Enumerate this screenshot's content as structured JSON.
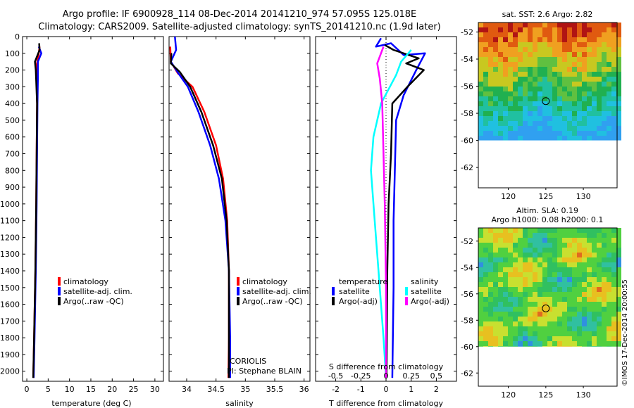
{
  "titles": {
    "line1": "Argo profile: IF 6900928_114 08-Dec-2014 20141210_974 57.095S 125.018E",
    "line2": "Climatology: CARS2009. Satellite-adjusted climatology: synTS_20141210.nc (1.9d later)"
  },
  "colors": {
    "climatology": "#ff0000",
    "satellite": "#0000ff",
    "argo": "#000000",
    "sal_satellite": "#00ffff",
    "sal_argo": "#ff00ff"
  },
  "chart_data": [
    {
      "type": "line",
      "xlabel": "temperature (deg C)",
      "xlim": [
        -1,
        32
      ],
      "xticks": [
        0,
        5,
        10,
        15,
        20,
        25,
        30
      ],
      "ylim": [
        2060,
        0
      ],
      "yticks": [
        0,
        100,
        200,
        300,
        400,
        500,
        600,
        700,
        800,
        900,
        1000,
        1100,
        1200,
        1300,
        1400,
        1500,
        1600,
        1700,
        1800,
        1900,
        2000
      ],
      "legend": [
        "climatology",
        "satellite-adj. clim.",
        "Argo(..raw -QC)"
      ],
      "series": [
        {
          "key": "climatology",
          "points": [
            [
              3.0,
              60
            ],
            [
              2.7,
              120
            ],
            [
              2.3,
              170
            ],
            [
              2.3,
              250
            ],
            [
              2.4,
              400
            ],
            [
              2.3,
              700
            ],
            [
              2.2,
              1000
            ],
            [
              2.0,
              1400
            ],
            [
              1.7,
              1800
            ],
            [
              1.5,
              2040
            ]
          ]
        },
        {
          "key": "satellite",
          "points": [
            [
              2.8,
              60
            ],
            [
              3.4,
              100
            ],
            [
              2.6,
              150
            ],
            [
              2.6,
              250
            ],
            [
              2.5,
              400
            ],
            [
              2.4,
              700
            ],
            [
              2.3,
              1000
            ],
            [
              2.1,
              1400
            ],
            [
              1.8,
              1800
            ],
            [
              1.6,
              2040
            ]
          ]
        },
        {
          "key": "argo",
          "points": [
            [
              2.9,
              40
            ],
            [
              3.0,
              80
            ],
            [
              1.9,
              150
            ],
            [
              2.1,
              200
            ],
            [
              2.4,
              400
            ],
            [
              2.3,
              700
            ],
            [
              2.2,
              1000
            ],
            [
              2.0,
              1400
            ],
            [
              1.7,
              1800
            ],
            [
              1.5,
              2040
            ]
          ]
        }
      ]
    },
    {
      "type": "line",
      "xlabel": "salinity",
      "xlim": [
        33.7,
        36.1
      ],
      "xticks": [
        34,
        34.5,
        35,
        35.5,
        36
      ],
      "ylim": [
        2060,
        0
      ],
      "legend": [
        "climatology",
        "satellite-adj. clim.",
        "Argo(..raw -QC)"
      ],
      "annotation": [
        "CORIOLIS",
        "PI: Stephane BLAIN"
      ],
      "series": [
        {
          "key": "climatology",
          "points": [
            [
              33.72,
              60
            ],
            [
              33.73,
              150
            ],
            [
              33.85,
              220
            ],
            [
              34.1,
              300
            ],
            [
              34.3,
              450
            ],
            [
              34.5,
              650
            ],
            [
              34.62,
              850
            ],
            [
              34.69,
              1100
            ],
            [
              34.72,
              1400
            ],
            [
              34.72,
              1800
            ],
            [
              34.71,
              2040
            ]
          ]
        },
        {
          "key": "satellite",
          "points": [
            [
              33.8,
              0
            ],
            [
              33.82,
              80
            ],
            [
              33.73,
              150
            ],
            [
              33.86,
              220
            ],
            [
              34.02,
              300
            ],
            [
              34.2,
              450
            ],
            [
              34.4,
              650
            ],
            [
              34.55,
              850
            ],
            [
              34.66,
              1100
            ],
            [
              34.72,
              1400
            ],
            [
              34.74,
              1800
            ],
            [
              34.74,
              2040
            ]
          ]
        },
        {
          "key": "argo",
          "points": [
            [
              33.74,
              100
            ],
            [
              33.73,
              160
            ],
            [
              33.88,
              210
            ],
            [
              34.06,
              300
            ],
            [
              34.25,
              450
            ],
            [
              34.45,
              650
            ],
            [
              34.6,
              850
            ],
            [
              34.68,
              1100
            ],
            [
              34.72,
              1400
            ],
            [
              34.72,
              1800
            ],
            [
              34.72,
              2040
            ]
          ]
        }
      ]
    },
    {
      "type": "line",
      "xlabel": "T difference from climatology",
      "xlabel2": "S difference from climatology",
      "xlim": [
        -2.8,
        2.8
      ],
      "xticks": [
        -2,
        -1,
        0,
        1,
        2
      ],
      "s_ticks": [
        [
          "-0.5",
          -2
        ],
        [
          "-0.25",
          -1
        ],
        [
          "0",
          0
        ],
        [
          "0.25",
          1
        ],
        [
          "0.5",
          2
        ]
      ],
      "ylim": [
        2060,
        0
      ],
      "legend_temperature": [
        "temperature",
        "satellite",
        "Argo(-adj)"
      ],
      "legend_salinity": [
        "salinity",
        "satellite",
        "Argo(-adj)"
      ],
      "series": [
        {
          "key": "satellite",
          "points": [
            [
              -0.2,
              10
            ],
            [
              -0.4,
              60
            ],
            [
              0.2,
              40
            ],
            [
              0.7,
              110
            ],
            [
              1.55,
              100
            ],
            [
              1.2,
              200
            ],
            [
              0.7,
              350
            ],
            [
              0.4,
              500
            ],
            [
              0.35,
              800
            ],
            [
              0.3,
              1100
            ],
            [
              0.3,
              1500
            ],
            [
              0.25,
              2040
            ]
          ]
        },
        {
          "key": "argo",
          "points": [
            [
              -0.05,
              50
            ],
            [
              0.3,
              80
            ],
            [
              1.3,
              130
            ],
            [
              0.8,
              160
            ],
            [
              1.5,
              200
            ],
            [
              0.85,
              300
            ],
            [
              0.25,
              400
            ],
            [
              0.2,
              700
            ],
            [
              0.1,
              1000
            ],
            [
              0.05,
              1400
            ],
            [
              0.02,
              2040
            ]
          ]
        },
        {
          "key": "sal_satellite",
          "points": [
            [
              1.0,
              80
            ],
            [
              0.6,
              150
            ],
            [
              0.4,
              230
            ],
            [
              -0.2,
              400
            ],
            [
              -0.5,
              600
            ],
            [
              -0.6,
              800
            ],
            [
              -0.45,
              1100
            ],
            [
              -0.3,
              1400
            ],
            [
              -0.1,
              1800
            ],
            [
              0.0,
              2040
            ]
          ]
        },
        {
          "key": "sal_argo",
          "points": [
            [
              -0.1,
              60
            ],
            [
              -0.35,
              160
            ],
            [
              -0.25,
              250
            ],
            [
              -0.15,
              400
            ],
            [
              -0.05,
              1000
            ],
            [
              0.0,
              1500
            ],
            [
              0.0,
              2040
            ]
          ]
        }
      ]
    }
  ],
  "maps": {
    "sst_title": "sat. SST: 2.6 Argo: 2.82",
    "sla_title_1": "Altim. SLA: 0.19",
    "sla_title_2": "Argo h1000: 0.08 h2000: 0.1",
    "map_yticks": [
      -52,
      -54,
      -56,
      -58,
      -60,
      -62
    ],
    "map_xticks": [
      120,
      125,
      130
    ],
    "argo_lon": 125.0,
    "argo_lat": -57.1
  },
  "credit": "©IMOS 17-Dec-2014 20:00:55"
}
